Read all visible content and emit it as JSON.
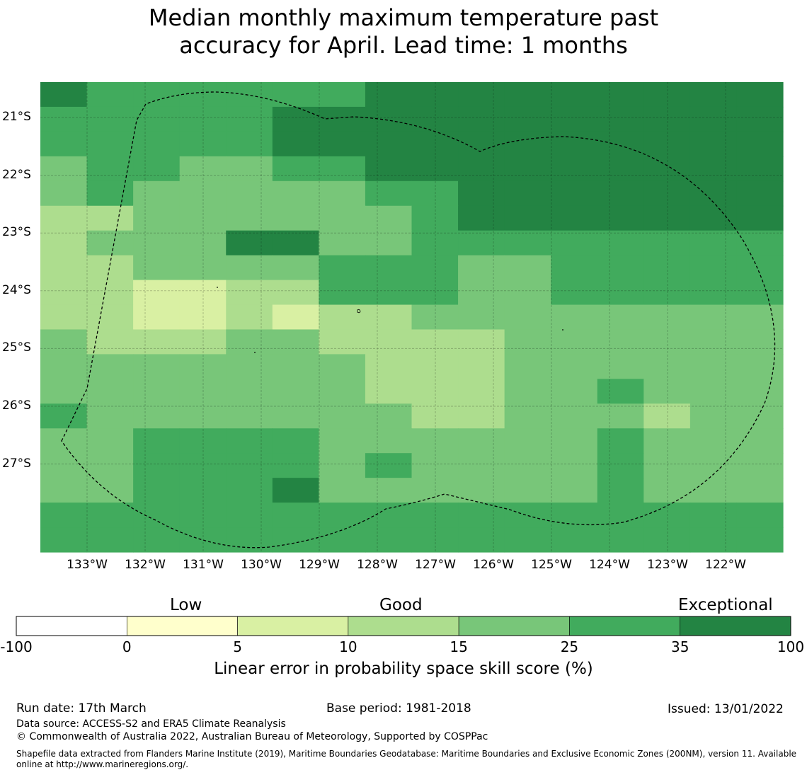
{
  "title_line1": "Median monthly maximum temperature past",
  "title_line2": "accuracy for April. Lead time: 1 months",
  "map": {
    "lat_labels": [
      "21°S",
      "22°S",
      "23°S",
      "24°S",
      "25°S",
      "26°S",
      "27°S"
    ],
    "lat_values": [
      -21,
      -22,
      -23,
      -24,
      -25,
      -26,
      -27
    ],
    "lon_labels": [
      "133°W",
      "132°W",
      "131°W",
      "130°W",
      "129°W",
      "128°W",
      "127°W",
      "126°W",
      "125°W",
      "124°W",
      "123°W",
      "122°W"
    ],
    "lon_values": [
      -133,
      -132,
      -131,
      -130,
      -129,
      -128,
      -127,
      -126,
      -125,
      -124,
      -123,
      -122
    ],
    "grid": [
      "on"
    ],
    "category_rows_north_to_south": [
      "6555555666666666",
      "5555566666666666",
      "5555566666666666",
      "4554455666666666",
      "4544444556666666",
      "3344444456666666",
      "3444664455555555",
      "3344445554455555",
      "3322335554455555",
      "3322323344444444",
      "4333443333444444",
      "4444444333444444",
      "4444444333445444",
      "5444444433444344",
      "4455554444445444",
      "4455554544445444",
      "4455564444445444",
      "5555555555555555",
      "5555555555555555"
    ]
  },
  "colorbar": {
    "category_labels": [
      "Low",
      "Good",
      "Exceptional"
    ],
    "bounds": [
      "-100",
      "0",
      "5",
      "10",
      "15",
      "25",
      "35",
      "100"
    ],
    "colors": [
      "#ffffff",
      "#ffffcc",
      "#d9f0a3",
      "#addd8e",
      "#78c679",
      "#41ab5d",
      "#238443"
    ],
    "label": "Linear error in probability space skill score (%)"
  },
  "footer": {
    "run_date": "Run date: 17th March",
    "base_period": "Base period: 1981-2018",
    "issued": "Issued: 13/01/2022",
    "data_source": "Data source: ACCESS-S2 and ERA5 Climate Reanalysis",
    "copyright": "© Commonwealth of Australia 2022, Australian Bureau of Meteorology, Supported by COSPPac",
    "shapefile": "Shapefile data extracted from Flanders Marine Institute (2019), Maritime Boundaries Geodatabase: Maritime Boundaries and Exclusive Economic Zones (200NM), version 11. Available online at http://www.marineregions.org/."
  }
}
